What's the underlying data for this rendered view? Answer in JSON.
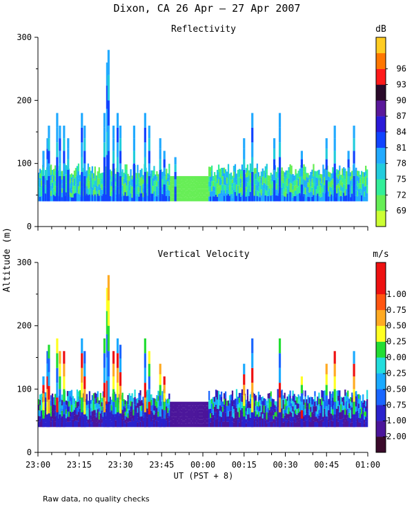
{
  "chart_data": {
    "title": "Dixon, CA 26 Apr — 27 Apr 2007",
    "ylabel": "Altitude (m)",
    "xlabel": "UT  (PST + 8)",
    "x_tick_labels": [
      "23:00",
      "23:15",
      "23:30",
      "23:45",
      "00:00",
      "00:15",
      "00:30",
      "00:45",
      "01:00"
    ],
    "x_range_minutes": [
      0,
      120
    ],
    "note": "Raw data, no quality checks",
    "panels": [
      {
        "type": "heatmap",
        "title": "Reflectivity",
        "unit": "dB",
        "ylim": [
          0,
          300
        ],
        "y_ticks": [
          0,
          100,
          200,
          300
        ],
        "colorbar_labels": [
          "69",
          "72",
          "75",
          "78",
          "81",
          "84",
          "87",
          "90",
          "93",
          "96"
        ],
        "colors": [
          "#ccff33",
          "#66ee55",
          "#33ee99",
          "#22ccdd",
          "#22aaff",
          "#1144ff",
          "#2a1ad8",
          "#5a189a",
          "#2a0a2a",
          "#ff1a1a",
          "#ff7700",
          "#ffcc22"
        ],
        "echo_base_m": 40,
        "spikes": [
          {
            "t": 2,
            "top": 120
          },
          {
            "t": 3.5,
            "top": 140
          },
          {
            "t": 4,
            "top": 160
          },
          {
            "t": 7,
            "top": 180
          },
          {
            "t": 8,
            "top": 160
          },
          {
            "t": 9.5,
            "top": 160
          },
          {
            "t": 11,
            "top": 140
          },
          {
            "t": 16,
            "top": 180
          },
          {
            "t": 17,
            "top": 160
          },
          {
            "t": 24.2,
            "top": 180
          },
          {
            "t": 25.2,
            "top": 260
          },
          {
            "t": 25.7,
            "top": 280
          },
          {
            "t": 27.5,
            "top": 160
          },
          {
            "t": 29,
            "top": 180
          },
          {
            "t": 30,
            "top": 160
          },
          {
            "t": 35,
            "top": 160
          },
          {
            "t": 39,
            "top": 180
          },
          {
            "t": 40.5,
            "top": 160
          },
          {
            "t": 44.5,
            "top": 140
          },
          {
            "t": 46,
            "top": 120
          },
          {
            "t": 50,
            "top": 110
          },
          {
            "t": 75,
            "top": 140
          },
          {
            "t": 78,
            "top": 180
          },
          {
            "t": 86,
            "top": 140
          },
          {
            "t": 88,
            "top": 180
          },
          {
            "t": 96,
            "top": 120
          },
          {
            "t": 105,
            "top": 140
          },
          {
            "t": 108,
            "top": 160
          },
          {
            "t": 113,
            "top": 120
          },
          {
            "t": 115,
            "top": 160
          }
        ]
      },
      {
        "type": "heatmap",
        "title": "Vertical Velocity",
        "unit": "m/s",
        "ylim": [
          0,
          300
        ],
        "y_ticks": [
          0,
          100,
          200,
          300
        ],
        "colorbar_labels": [
          "-2.00",
          "-1.00",
          "-0.75",
          "-0.50",
          "-0.25",
          "0.00",
          "0.25",
          "0.50",
          "0.75",
          "1.00"
        ],
        "colors": [
          "#3a0a2a",
          "#4b159a",
          "#2a22cc",
          "#1a66ff",
          "#1aaaff",
          "#22dddd",
          "#22dd33",
          "#ffff22",
          "#ffaa22",
          "#ff5511",
          "#ee1111",
          "#ee1111"
        ],
        "echo_base_m": 40,
        "spikes": [
          {
            "t": 2,
            "top": 120
          },
          {
            "t": 3.5,
            "top": 160
          },
          {
            "t": 4,
            "top": 170
          },
          {
            "t": 7,
            "top": 180
          },
          {
            "t": 8,
            "top": 160
          },
          {
            "t": 9.5,
            "top": 160
          },
          {
            "t": 16,
            "top": 180
          },
          {
            "t": 17,
            "top": 160
          },
          {
            "t": 24.2,
            "top": 180
          },
          {
            "t": 25.2,
            "top": 260
          },
          {
            "t": 25.7,
            "top": 280
          },
          {
            "t": 27.5,
            "top": 160
          },
          {
            "t": 29,
            "top": 180
          },
          {
            "t": 30,
            "top": 170
          },
          {
            "t": 39,
            "top": 180
          },
          {
            "t": 40.5,
            "top": 160
          },
          {
            "t": 44.5,
            "top": 140
          },
          {
            "t": 46,
            "top": 120
          },
          {
            "t": 75,
            "top": 140
          },
          {
            "t": 78,
            "top": 180
          },
          {
            "t": 88,
            "top": 180
          },
          {
            "t": 96,
            "top": 120
          },
          {
            "t": 105,
            "top": 140
          },
          {
            "t": 108,
            "top": 160
          },
          {
            "t": 115,
            "top": 160
          }
        ]
      }
    ]
  }
}
